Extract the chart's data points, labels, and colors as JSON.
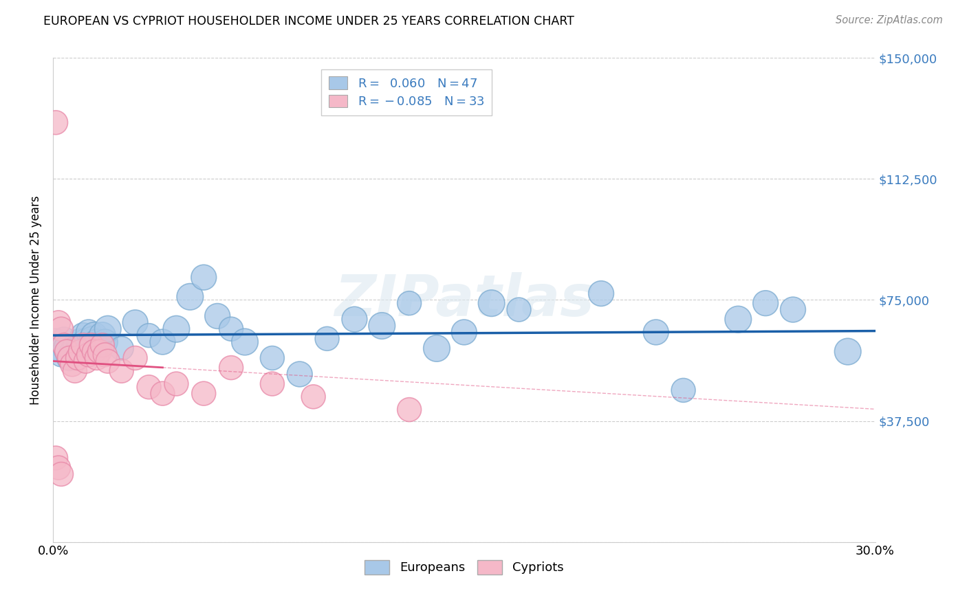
{
  "title": "EUROPEAN VS CYPRIOT HOUSEHOLDER INCOME UNDER 25 YEARS CORRELATION CHART",
  "source": "Source: ZipAtlas.com",
  "ylabel": "Householder Income Under 25 years",
  "watermark": "ZIPatlas",
  "xlim": [
    0.0,
    0.3
  ],
  "ylim": [
    0,
    150000
  ],
  "yticks": [
    0,
    37500,
    75000,
    112500,
    150000
  ],
  "ytick_labels": [
    "",
    "$37,500",
    "$75,000",
    "$112,500",
    "$150,000"
  ],
  "xtick_labels": [
    "0.0%",
    "30.0%"
  ],
  "blue_R": 0.06,
  "blue_N": 47,
  "pink_R": -0.085,
  "pink_N": 33,
  "blue_color": "#a8c8e8",
  "blue_edge_color": "#7aaad0",
  "pink_color": "#f5b8c8",
  "pink_edge_color": "#e888a8",
  "trend_blue_color": "#1a5fa8",
  "trend_pink_color": "#e05080",
  "blue_scatter_x": [
    0.001,
    0.002,
    0.003,
    0.004,
    0.005,
    0.006,
    0.007,
    0.008,
    0.009,
    0.01,
    0.011,
    0.012,
    0.013,
    0.014,
    0.015,
    0.016,
    0.017,
    0.018,
    0.019,
    0.02,
    0.025,
    0.03,
    0.035,
    0.04,
    0.045,
    0.05,
    0.055,
    0.06,
    0.065,
    0.07,
    0.08,
    0.09,
    0.1,
    0.11,
    0.12,
    0.13,
    0.14,
    0.15,
    0.16,
    0.17,
    0.2,
    0.22,
    0.23,
    0.25,
    0.26,
    0.27,
    0.29
  ],
  "blue_scatter_y": [
    62000,
    60000,
    58000,
    63000,
    60000,
    57000,
    59000,
    61000,
    60000,
    62000,
    64000,
    62000,
    65000,
    63000,
    64000,
    62000,
    60000,
    64000,
    62000,
    66000,
    60000,
    68000,
    64000,
    62000,
    66000,
    76000,
    82000,
    70000,
    66000,
    62000,
    57000,
    52000,
    63000,
    69000,
    67000,
    74000,
    60000,
    65000,
    74000,
    72000,
    77000,
    65000,
    47000,
    69000,
    74000,
    72000,
    59000
  ],
  "pink_scatter_x": [
    0.001,
    0.002,
    0.003,
    0.004,
    0.005,
    0.006,
    0.007,
    0.008,
    0.009,
    0.01,
    0.011,
    0.012,
    0.013,
    0.014,
    0.015,
    0.016,
    0.017,
    0.018,
    0.019,
    0.02,
    0.025,
    0.03,
    0.035,
    0.04,
    0.045,
    0.055,
    0.065,
    0.08,
    0.095,
    0.13,
    0.001,
    0.002,
    0.003
  ],
  "pink_scatter_y": [
    130000,
    68000,
    66000,
    61000,
    59000,
    57000,
    55000,
    53000,
    57000,
    59000,
    61000,
    56000,
    58000,
    61000,
    59000,
    57000,
    59000,
    61000,
    58000,
    56000,
    53000,
    57000,
    48000,
    46000,
    49000,
    46000,
    54000,
    49000,
    45000,
    41000,
    26000,
    23000,
    21000
  ],
  "pink_scatter_sizes": [
    180,
    180,
    180,
    180,
    180,
    180,
    180,
    180,
    180,
    180,
    180,
    180,
    180,
    180,
    180,
    180,
    180,
    180,
    180,
    180,
    180,
    180,
    180,
    180,
    180,
    180,
    180,
    180,
    180,
    180,
    180,
    180,
    180
  ],
  "blue_scatter_sizes": [
    220,
    200,
    180,
    170,
    220,
    200,
    190,
    180,
    170,
    220,
    200,
    220,
    200,
    180,
    220,
    200,
    180,
    220,
    200,
    220,
    180,
    200,
    180,
    200,
    220,
    220,
    200,
    200,
    180,
    220,
    180,
    200,
    180,
    200,
    220,
    180,
    220,
    200,
    220,
    180,
    200,
    200,
    180,
    220,
    200,
    200,
    220
  ]
}
